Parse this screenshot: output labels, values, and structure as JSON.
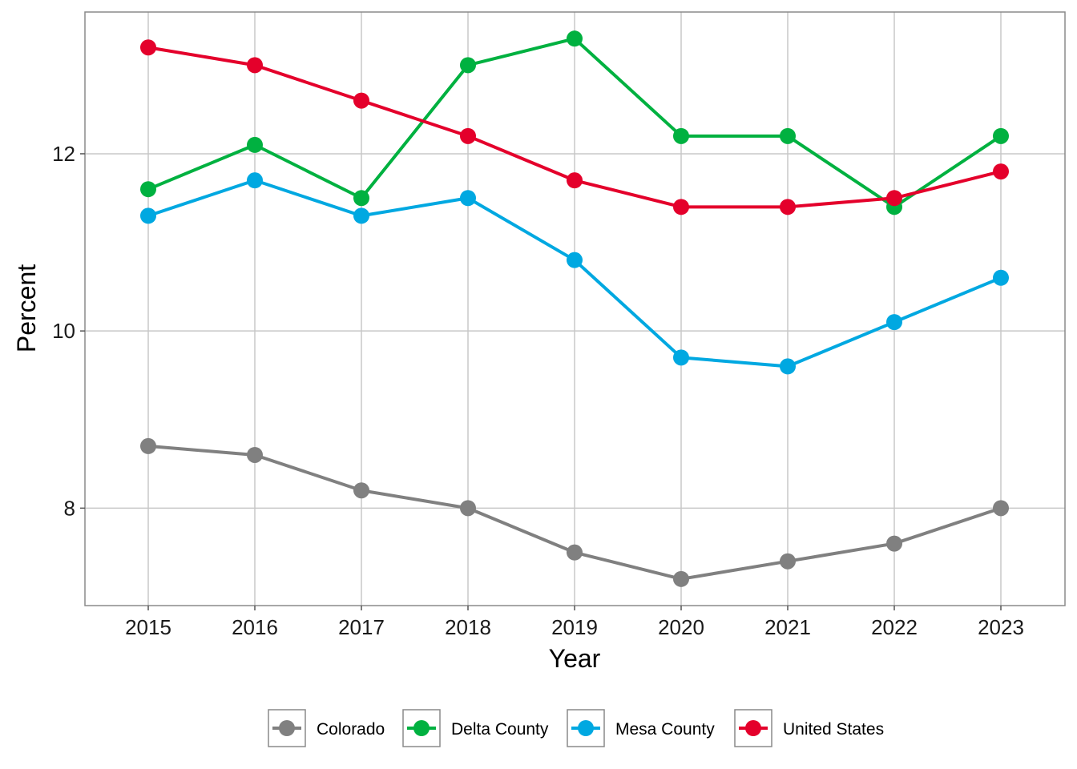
{
  "chart_data": {
    "type": "line",
    "title": "",
    "xlabel": "Year",
    "ylabel": "Percent",
    "x": [
      "2015",
      "2016",
      "2017",
      "2018",
      "2019",
      "2020",
      "2021",
      "2022",
      "2023"
    ],
    "ylim": [
      6.9,
      13.6
    ],
    "yticks": [
      8,
      10,
      12
    ],
    "ytick_labels": [
      "8",
      "10",
      "12"
    ],
    "grid": true,
    "legend_position": "bottom",
    "series": [
      {
        "name": "Colorado",
        "color": "#808080",
        "values": [
          8.7,
          8.6,
          8.2,
          8.0,
          7.5,
          7.2,
          7.4,
          7.6,
          8.0
        ]
      },
      {
        "name": "Delta County",
        "color": "#00b140",
        "values": [
          11.6,
          12.1,
          11.5,
          13.0,
          13.3,
          12.2,
          12.2,
          11.4,
          12.2
        ]
      },
      {
        "name": "Mesa County",
        "color": "#00a8e1",
        "values": [
          11.3,
          11.7,
          11.3,
          11.5,
          10.8,
          9.7,
          9.6,
          10.1,
          10.6
        ]
      },
      {
        "name": "United States",
        "color": "#e4002b",
        "values": [
          13.2,
          13.0,
          12.6,
          12.2,
          11.7,
          11.4,
          11.4,
          11.5,
          11.8
        ]
      }
    ]
  }
}
